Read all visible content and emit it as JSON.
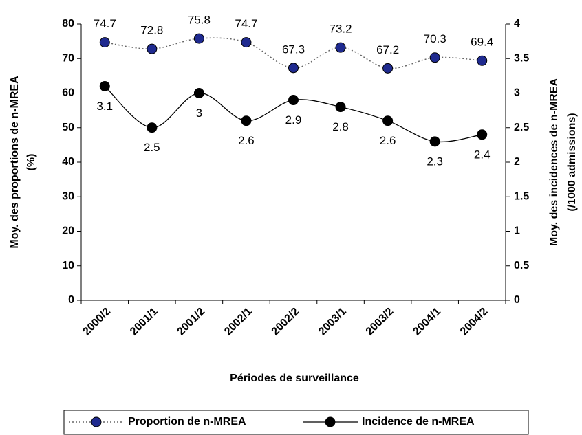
{
  "chart_data": {
    "type": "line",
    "categories": [
      "2000/2",
      "2001/1",
      "2001/2",
      "2002/1",
      "2002/2",
      "2003/1",
      "2003/2",
      "2004/1",
      "2004/2"
    ],
    "series": [
      {
        "name": "Proportion de n-MREA",
        "color": "#1f2a8f",
        "values": [
          74.7,
          72.8,
          75.8,
          74.7,
          67.3,
          73.2,
          67.2,
          70.3,
          69.4
        ]
      },
      {
        "name": "Incidence de n-MREA",
        "color": "#000000",
        "axis": "y2",
        "values": [
          3.1,
          2.5,
          3,
          2.6,
          2.9,
          2.8,
          2.6,
          2.3,
          2.4
        ]
      }
    ],
    "xlabel": "Périodes de surveillance",
    "ylabel": [
      "Moy. des proportions de n-MREA",
      "(%)"
    ],
    "y2label": [
      "Moy. des incidences de n-MREA",
      "(/1000 admissions)"
    ],
    "ylim": [
      0,
      80
    ],
    "yticks": [
      0,
      10,
      20,
      30,
      40,
      50,
      60,
      70,
      80
    ],
    "y2lim": [
      0,
      4
    ],
    "y2ticks": [
      0,
      0.5,
      1,
      1.5,
      2,
      2.5,
      3,
      3.5,
      4
    ],
    "legend": "bottom"
  }
}
